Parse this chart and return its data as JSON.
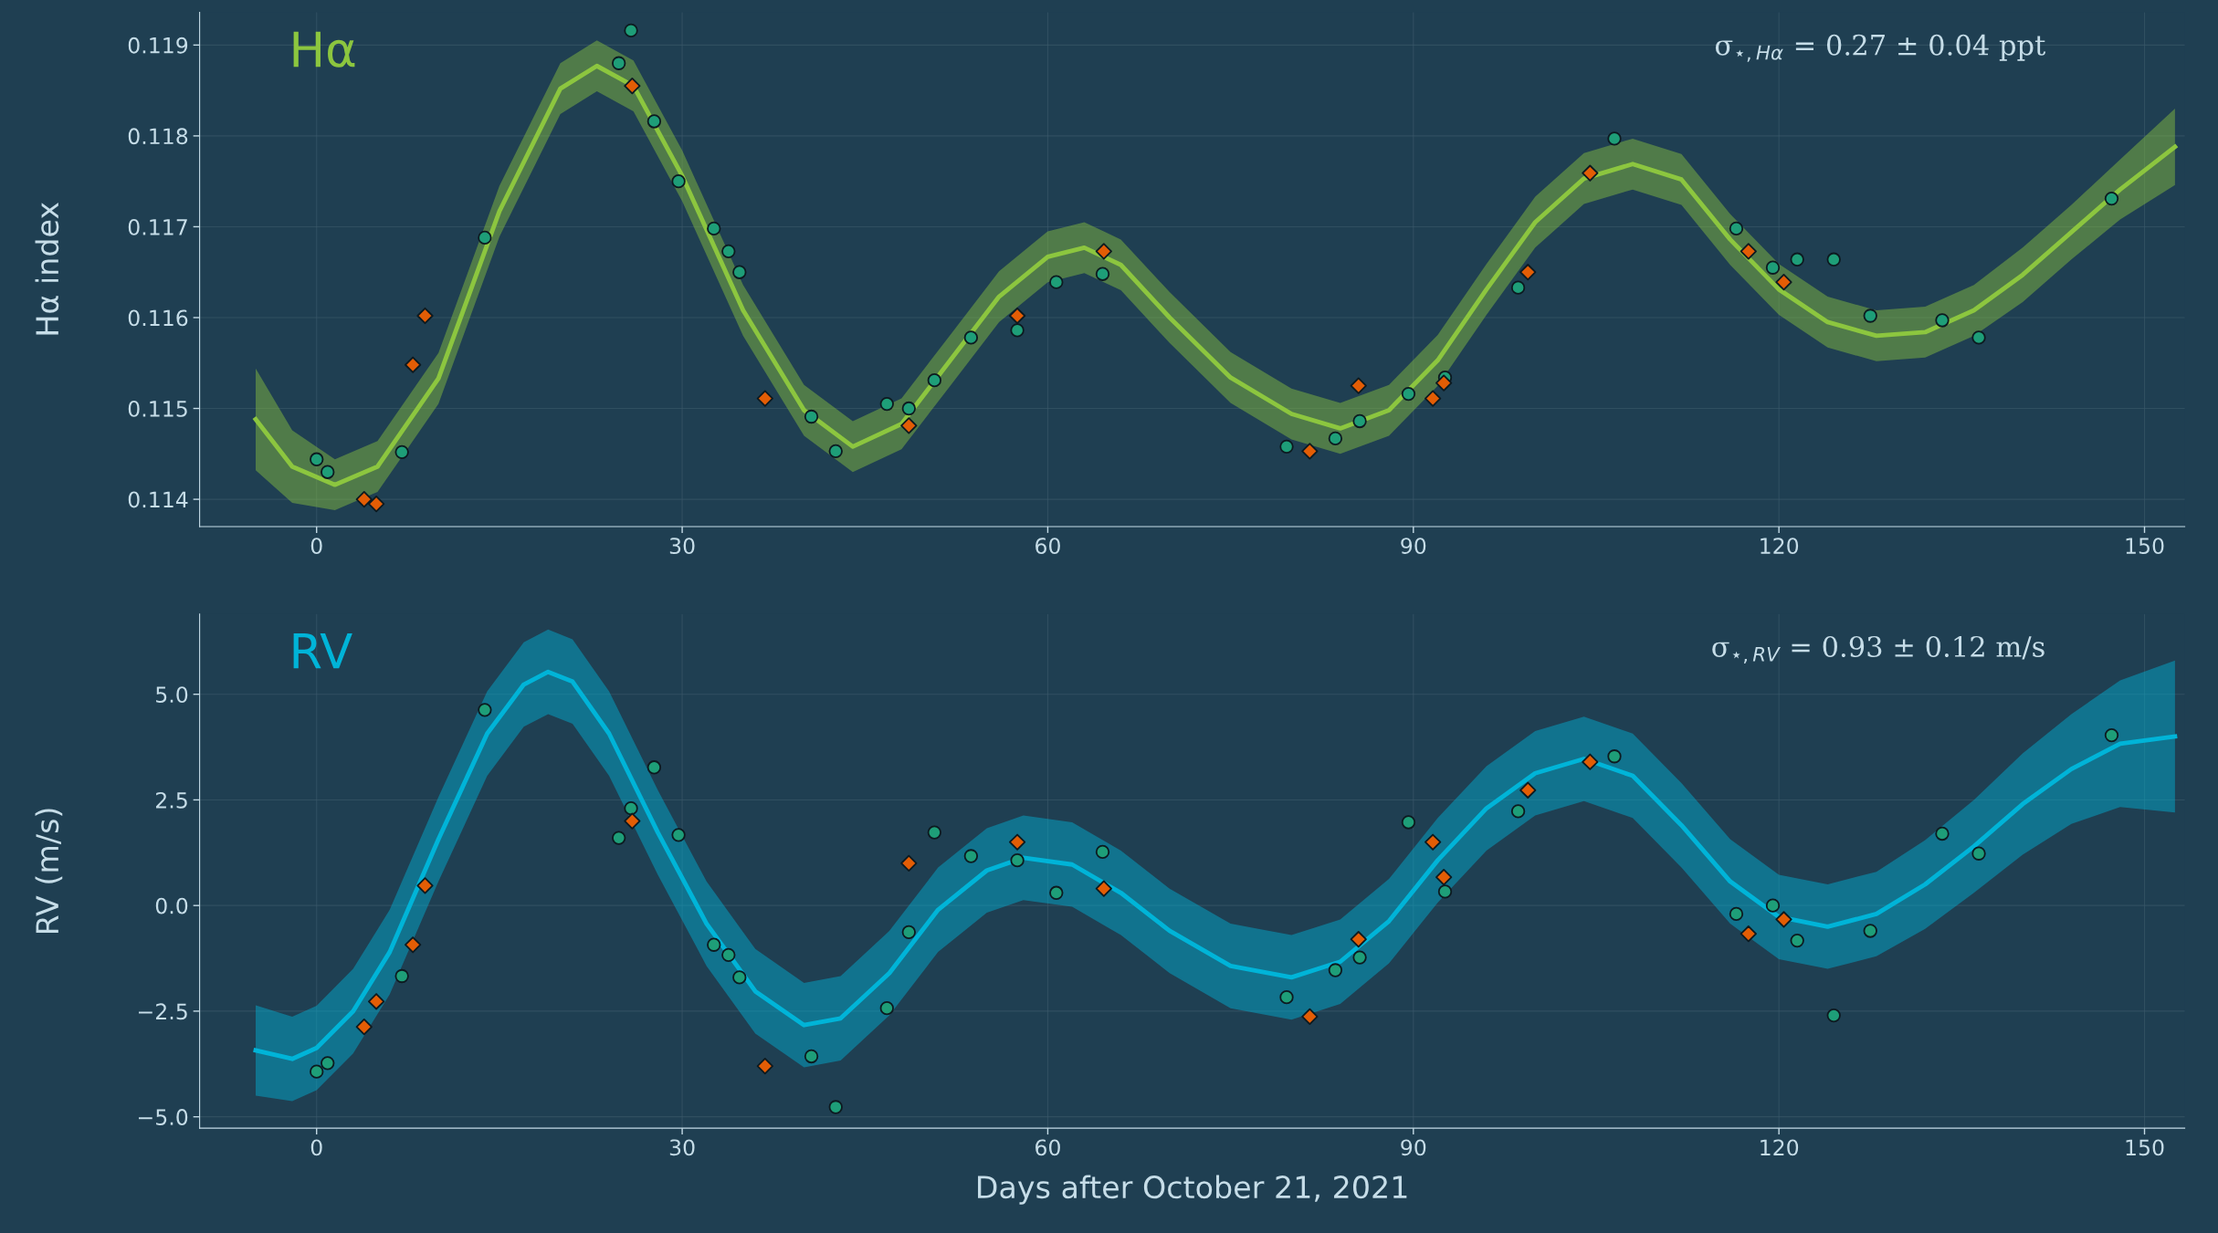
{
  "chart_data": [
    {
      "type": "scatter",
      "ylabel": "Hα index",
      "annotations": [
        "Hα",
        "σ$_{⋆,Hα}$ = 0.27 ± 0.04 ppt"
      ],
      "xlim": [
        -9.6,
        153.3
      ],
      "ylim": [
        0.1137,
        0.11936
      ],
      "xticks": [
        0,
        30,
        60,
        90,
        120,
        150
      ],
      "yticks": [
        0.114,
        0.115,
        0.116,
        0.117,
        0.118,
        0.119
      ],
      "grid": true,
      "series": [
        {
          "type": "line",
          "color": "#8cc63f",
          "marker": "none",
          "x": [
            -5,
            -2,
            1.5,
            5,
            10,
            15,
            20,
            23,
            26,
            30,
            35,
            40,
            44,
            48,
            52,
            56,
            60,
            63,
            66,
            70,
            75,
            80,
            84,
            88,
            92,
            96,
            100,
            104,
            108,
            112,
            116,
            120,
            124,
            128,
            132,
            136,
            140,
            144,
            148,
            152.5
          ],
          "values": [
            0.11488,
            0.11436,
            0.11416,
            0.11436,
            0.11533,
            0.11717,
            0.11852,
            0.11877,
            0.11855,
            0.11756,
            0.11608,
            0.11498,
            0.11458,
            0.11483,
            0.11553,
            0.11623,
            0.11667,
            0.11677,
            0.11658,
            0.116,
            0.11534,
            0.11494,
            0.11478,
            0.11498,
            0.11553,
            0.11631,
            0.11705,
            0.11753,
            0.11769,
            0.11752,
            0.11686,
            0.11631,
            0.11595,
            0.1158,
            0.11584,
            0.11608,
            0.11647,
            0.11694,
            0.11741,
            0.11788
          ],
          "lower": [
            0.11432,
            0.11396,
            0.11388,
            0.11408,
            0.11505,
            0.11689,
            0.11824,
            0.11849,
            0.11827,
            0.11728,
            0.1158,
            0.1147,
            0.1143,
            0.11455,
            0.11525,
            0.11595,
            0.11639,
            0.11649,
            0.1163,
            0.11572,
            0.11506,
            0.11466,
            0.1145,
            0.1147,
            0.11525,
            0.11603,
            0.11677,
            0.11725,
            0.11741,
            0.11724,
            0.11658,
            0.11603,
            0.11567,
            0.11552,
            0.11556,
            0.1158,
            0.11617,
            0.11664,
            0.11708,
            0.11746
          ],
          "upper": [
            0.11544,
            0.11476,
            0.11444,
            0.11464,
            0.11561,
            0.11745,
            0.1188,
            0.11905,
            0.11883,
            0.11784,
            0.11636,
            0.11526,
            0.11486,
            0.11511,
            0.11581,
            0.11651,
            0.11695,
            0.11705,
            0.11686,
            0.11628,
            0.11562,
            0.11522,
            0.11506,
            0.11526,
            0.11581,
            0.11659,
            0.11733,
            0.11781,
            0.11797,
            0.1178,
            0.11714,
            0.11659,
            0.11623,
            0.11608,
            0.11612,
            0.11636,
            0.11677,
            0.11724,
            0.11774,
            0.1183
          ]
        },
        {
          "color": "#1e9e78",
          "marker": "circle",
          "x": [
            0,
            0.9,
            7,
            13.8,
            24.8,
            25.8,
            27.7,
            29.7,
            32.6,
            33.8,
            34.7,
            40.6,
            42.6,
            46.8,
            48.6,
            50.7,
            53.7,
            57.5,
            60.7,
            64.5,
            79.6,
            83.6,
            85.6,
            89.6,
            92.6,
            98.6,
            106.5,
            116.5,
            119.5,
            121.5,
            124.5,
            127.5,
            133.4,
            136.4,
            147.3
          ],
          "values": [
            0.11444,
            0.1143,
            0.11452,
            0.11688,
            0.1188,
            0.11916,
            0.11816,
            0.1175,
            0.11698,
            0.11673,
            0.1165,
            0.11491,
            0.11453,
            0.11505,
            0.115,
            0.11531,
            0.11578,
            0.11586,
            0.11639,
            0.11648,
            0.11458,
            0.11467,
            0.11486,
            0.11516,
            0.11534,
            0.11633,
            0.11797,
            0.11698,
            0.11655,
            0.11664,
            0.11664,
            0.11602,
            0.11597,
            0.11578,
            0.11731
          ]
        },
        {
          "color": "#e35d05",
          "marker": "diamond",
          "x": [
            3.9,
            4.9,
            7.9,
            8.9,
            25.9,
            36.8,
            48.6,
            57.5,
            64.6,
            81.5,
            85.5,
            91.6,
            92.5,
            99.4,
            104.5,
            117.5,
            120.4
          ],
          "values": [
            0.114,
            0.11395,
            0.11548,
            0.11602,
            0.11855,
            0.11511,
            0.11481,
            0.11602,
            0.11673,
            0.11453,
            0.11525,
            0.11511,
            0.11528,
            0.1165,
            0.11759,
            0.11673,
            0.11639
          ]
        }
      ]
    },
    {
      "type": "scatter",
      "ylabel": "RV (m/s)",
      "xlabel": "Days after October 21, 2021",
      "annotations": [
        "RV",
        "σ$_{⋆,RV}$ = 0.93 ± 0.12 m/s"
      ],
      "xlim": [
        -9.6,
        153.3
      ],
      "ylim": [
        -5.27,
        6.9
      ],
      "xticks": [
        0,
        30,
        60,
        90,
        120,
        150
      ],
      "yticks": [
        {
          "value": 5,
          "label": "5.0"
        },
        2.5,
        {
          "value": 0,
          "label": "0.0"
        },
        {
          "value": -2.5,
          "label": "−2.5"
        },
        {
          "value": -5,
          "label": "−5.0"
        }
      ],
      "grid": true,
      "series": [
        {
          "type": "line",
          "color": "#00b4d8",
          "marker": "none",
          "x": [
            -5,
            -2,
            0,
            3,
            6,
            10,
            14,
            17,
            19,
            21,
            24,
            28,
            32,
            36,
            40,
            43,
            47,
            51,
            55,
            58,
            62,
            66,
            70,
            75,
            80,
            84,
            88,
            92,
            96,
            100,
            104,
            108,
            112,
            116,
            120,
            124,
            128,
            132,
            136,
            140,
            144,
            148,
            152.5
          ],
          "values": [
            -3.43,
            -3.63,
            -3.37,
            -2.5,
            -1.1,
            1.57,
            4.07,
            5.23,
            5.53,
            5.3,
            4.07,
            1.73,
            -0.43,
            -2.03,
            -2.83,
            -2.67,
            -1.6,
            -0.1,
            0.83,
            1.13,
            0.97,
            0.3,
            -0.6,
            -1.43,
            -1.7,
            -1.33,
            -0.37,
            1.07,
            2.3,
            3.13,
            3.47,
            3.07,
            1.9,
            0.57,
            -0.27,
            -0.5,
            -0.2,
            0.5,
            1.4,
            2.4,
            3.23,
            3.83,
            4.0
          ],
          "lower": [
            -4.5,
            -4.63,
            -4.37,
            -3.5,
            -2.1,
            0.57,
            3.07,
            4.23,
            4.53,
            4.3,
            3.07,
            0.73,
            -1.43,
            -3.03,
            -3.83,
            -3.67,
            -2.6,
            -1.1,
            -0.17,
            0.13,
            -0.03,
            -0.7,
            -1.6,
            -2.43,
            -2.7,
            -2.33,
            -1.37,
            0.07,
            1.3,
            2.13,
            2.47,
            2.07,
            0.9,
            -0.43,
            -1.27,
            -1.5,
            -1.2,
            -0.55,
            0.3,
            1.2,
            1.93,
            2.33,
            2.2
          ],
          "upper": [
            -2.36,
            -2.63,
            -2.37,
            -1.5,
            -0.1,
            2.57,
            5.07,
            6.23,
            6.53,
            6.3,
            5.07,
            2.73,
            0.57,
            -1.03,
            -1.83,
            -1.67,
            -0.6,
            0.9,
            1.83,
            2.13,
            1.97,
            1.3,
            0.4,
            -0.43,
            -0.7,
            -0.33,
            0.63,
            2.07,
            3.3,
            4.13,
            4.47,
            4.07,
            2.9,
            1.57,
            0.73,
            0.5,
            0.8,
            1.55,
            2.5,
            3.6,
            4.53,
            5.33,
            5.8
          ]
        },
        {
          "color": "#1e9e78",
          "marker": "circle",
          "x": [
            0,
            0.9,
            7,
            13.8,
            24.8,
            25.8,
            27.7,
            29.7,
            32.6,
            33.8,
            34.7,
            40.6,
            42.6,
            46.8,
            48.6,
            50.7,
            53.7,
            57.5,
            60.7,
            64.5,
            79.6,
            83.6,
            85.6,
            89.6,
            92.6,
            98.6,
            106.5,
            116.5,
            119.5,
            121.5,
            124.5,
            127.5,
            133.4,
            136.4,
            147.3
          ],
          "values": [
            -3.93,
            -3.73,
            -1.67,
            4.63,
            1.6,
            2.3,
            3.27,
            1.67,
            -0.93,
            -1.17,
            -1.7,
            -3.57,
            -4.77,
            -2.43,
            -0.63,
            1.73,
            1.17,
            1.07,
            0.3,
            1.27,
            -2.17,
            -1.53,
            -1.23,
            1.97,
            0.33,
            2.23,
            3.53,
            -0.2,
            0.0,
            -0.83,
            -2.6,
            -0.6,
            1.7,
            1.23,
            4.03
          ]
        },
        {
          "color": "#e35d05",
          "marker": "diamond",
          "x": [
            3.9,
            4.9,
            7.9,
            8.9,
            25.9,
            36.8,
            48.6,
            57.5,
            64.6,
            81.5,
            85.5,
            91.6,
            92.5,
            99.4,
            104.5,
            117.5,
            120.4
          ],
          "values": [
            -2.87,
            -2.27,
            -0.93,
            0.47,
            2.0,
            -3.8,
            1.0,
            1.5,
            0.4,
            -2.63,
            -0.8,
            1.5,
            0.67,
            2.73,
            3.4,
            -0.67,
            -0.33
          ]
        }
      ]
    }
  ]
}
